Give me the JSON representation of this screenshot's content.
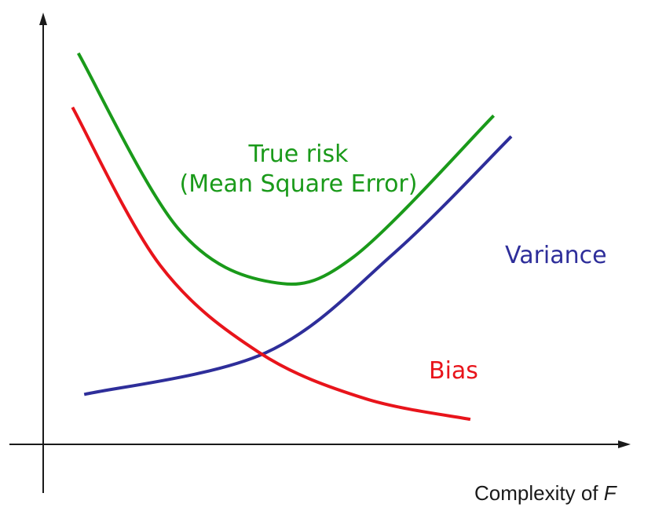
{
  "chart_data": {
    "type": "line",
    "xlabel_text": "Complexity of ",
    "xlabel_var": "F",
    "ylabel": "",
    "grid": false,
    "tick_labels": false,
    "series": [
      {
        "name": "True risk (Mean Square Error)",
        "name_lines": [
          "True risk",
          "(Mean Square Error)"
        ],
        "color": "#1a9a1a",
        "points": [
          [
            0.06,
            0.94
          ],
          [
            0.23,
            0.52
          ],
          [
            0.39,
            0.39
          ],
          [
            0.53,
            0.45
          ],
          [
            0.77,
            0.79
          ]
        ]
      },
      {
        "name": "Variance",
        "color": "#2e2e9a",
        "points": [
          [
            0.07,
            0.12
          ],
          [
            0.38,
            0.22
          ],
          [
            0.6,
            0.46
          ],
          [
            0.8,
            0.74
          ]
        ]
      },
      {
        "name": "Bias",
        "color": "#e8141b",
        "points": [
          [
            0.05,
            0.81
          ],
          [
            0.2,
            0.43
          ],
          [
            0.37,
            0.22
          ],
          [
            0.55,
            0.11
          ],
          [
            0.73,
            0.06
          ]
        ]
      }
    ]
  }
}
